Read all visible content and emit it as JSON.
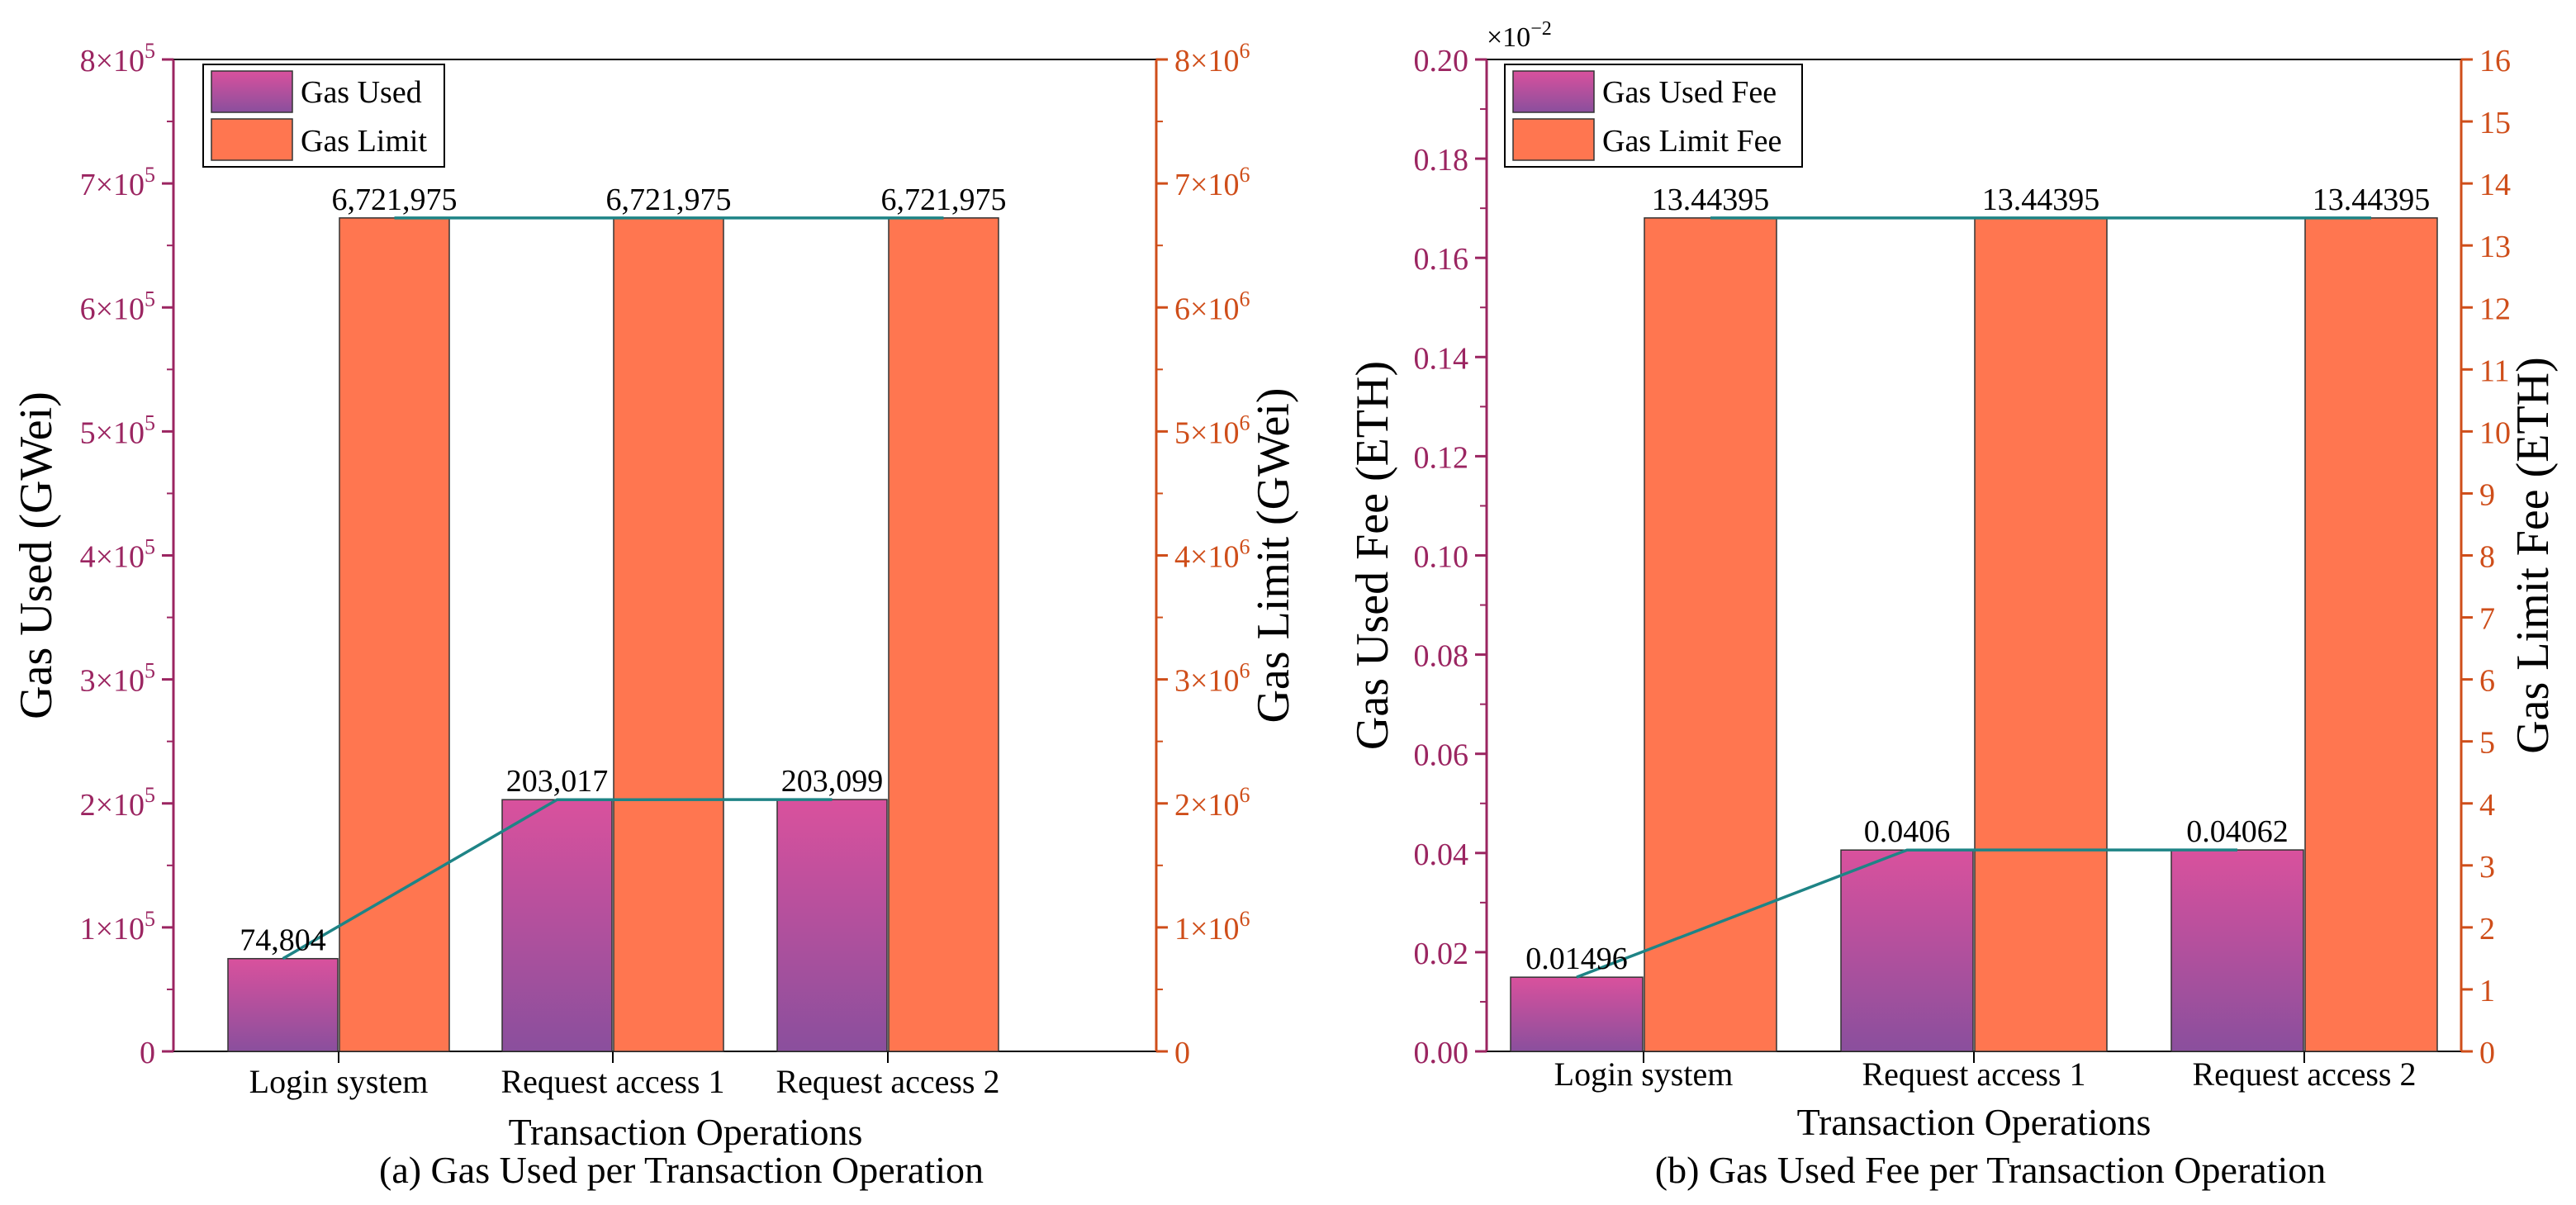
{
  "colors": {
    "used_top": "#d9519d",
    "used_bottom": "#8a4f9d",
    "limit": "#ff7650",
    "left_axis": "#9b2561",
    "right_axis": "#cf4e1a",
    "connector": "#1e8486",
    "text": "#000000"
  },
  "chart_data": [
    {
      "id": "a",
      "type": "bar",
      "caption": "(a) Gas Used per Transaction Operation",
      "xlabel": "Transaction Operations",
      "ylabel_left": "Gas Used (GWei)",
      "ylabel_right": "Gas Limit (GWei)",
      "categories": [
        "Login system",
        "Request access 1",
        "Request access 2"
      ],
      "left_axis": {
        "min": 0,
        "max": 800000,
        "step": 100000,
        "tick_labels": [
          {
            "mant": "0",
            "base": "",
            "exp": ""
          },
          {
            "mant": "1×",
            "base": "10",
            "exp": "5"
          },
          {
            "mant": "2×",
            "base": "10",
            "exp": "5"
          },
          {
            "mant": "3×",
            "base": "10",
            "exp": "5"
          },
          {
            "mant": "4×",
            "base": "10",
            "exp": "5"
          },
          {
            "mant": "5×",
            "base": "10",
            "exp": "5"
          },
          {
            "mant": "6×",
            "base": "10",
            "exp": "5"
          },
          {
            "mant": "7×",
            "base": "10",
            "exp": "5"
          },
          {
            "mant": "8×",
            "base": "10",
            "exp": "5"
          }
        ]
      },
      "right_axis": {
        "min": 0,
        "max": 8000000,
        "step": 1000000,
        "tick_labels": [
          {
            "mant": "0",
            "base": "",
            "exp": ""
          },
          {
            "mant": "1×",
            "base": "10",
            "exp": "6"
          },
          {
            "mant": "2×",
            "base": "10",
            "exp": "6"
          },
          {
            "mant": "3×",
            "base": "10",
            "exp": "6"
          },
          {
            "mant": "4×",
            "base": "10",
            "exp": "6"
          },
          {
            "mant": "5×",
            "base": "10",
            "exp": "6"
          },
          {
            "mant": "6×",
            "base": "10",
            "exp": "6"
          },
          {
            "mant": "7×",
            "base": "10",
            "exp": "6"
          },
          {
            "mant": "8×",
            "base": "10",
            "exp": "6"
          }
        ]
      },
      "series": [
        {
          "name": "Gas Used",
          "axis": "left",
          "values": [
            74804,
            203017,
            203099
          ],
          "labels": [
            "74,804",
            "203,017",
            "203,099"
          ]
        },
        {
          "name": "Gas Limit",
          "axis": "right",
          "values": [
            6721975,
            6721975,
            6721975
          ],
          "labels": [
            "6,721,975",
            "6,721,975",
            "6,721,975"
          ]
        }
      ],
      "legend": [
        "Gas Used",
        "Gas Limit"
      ],
      "legend_position": "top-left"
    },
    {
      "id": "b",
      "type": "bar",
      "caption": "(b) Gas Used Fee per Transaction Operation",
      "xlabel": "Transaction Operations",
      "ylabel_left": "Gas Used Fee (ETH)",
      "ylabel_right": "Gas Limit Fee (ETH)",
      "categories": [
        "Login system",
        "Request access 1",
        "Request access 2"
      ],
      "scale_note": {
        "base": "×10",
        "exp": "−2"
      },
      "left_axis": {
        "min": 0,
        "max": 0.2,
        "step": 0.02,
        "tick_labels": [
          "0.00",
          "0.02",
          "0.04",
          "0.06",
          "0.08",
          "0.10",
          "0.12",
          "0.14",
          "0.16",
          "0.18",
          "0.20"
        ]
      },
      "right_axis": {
        "min": 0,
        "max": 16,
        "step": 1,
        "tick_labels": [
          "0",
          "1",
          "2",
          "3",
          "4",
          "5",
          "6",
          "7",
          "8",
          "9",
          "10",
          "11",
          "12",
          "13",
          "14",
          "15",
          "16"
        ]
      },
      "series": [
        {
          "name": "Gas Used Fee",
          "axis": "left",
          "values": [
            0.01496,
            0.0406,
            0.04062
          ],
          "labels": [
            "0.01496",
            "0.0406",
            "0.04062"
          ]
        },
        {
          "name": "Gas Limit Fee",
          "axis": "right",
          "values": [
            13.44395,
            13.44395,
            13.44395
          ],
          "labels": [
            "13.44395",
            "13.44395",
            "13.44395"
          ]
        }
      ],
      "legend": [
        "Gas Used Fee",
        "Gas Limit Fee"
      ],
      "legend_position": "top-left"
    }
  ]
}
